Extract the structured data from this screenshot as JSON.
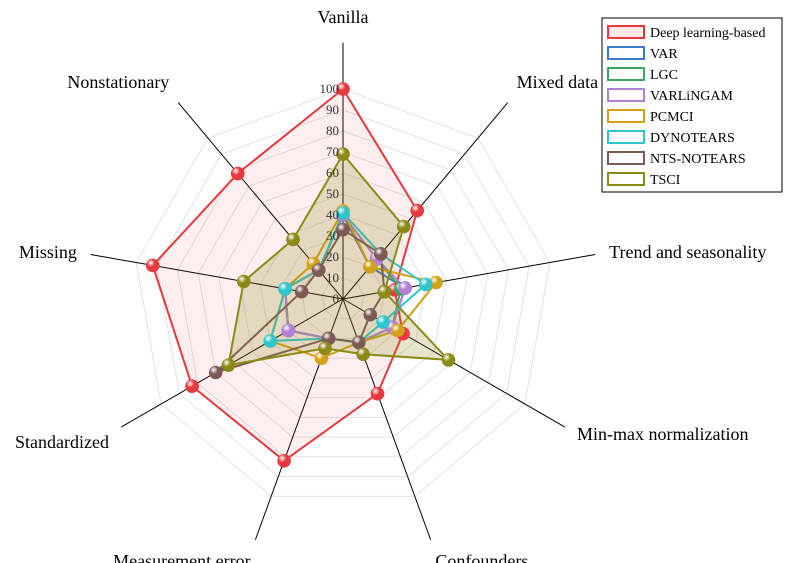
{
  "chart_data": {
    "type": "radar",
    "axes": [
      "Vanilla",
      "Mixed data",
      "Trend and seasonality",
      "Min-max normalization",
      "Confounders",
      "Measurement error",
      "Standardized",
      "Missing",
      "Nonstationary"
    ],
    "radial_ticks": [
      "0",
      "10",
      "20",
      "30",
      "40",
      "50",
      "60",
      "70",
      "80",
      "90",
      "100"
    ],
    "rlim": [
      0,
      100
    ],
    "grid": true,
    "legend_position": "top-right",
    "series": [
      {
        "name": "Deep learning-based",
        "color": "#e8393f",
        "fill": true,
        "values": [
          100,
          55,
          25,
          33,
          48,
          82,
          83,
          92,
          78
        ]
      },
      {
        "name": "VAR",
        "color": "#3d78c9",
        "fill": false,
        "values": [
          40,
          20,
          30,
          27,
          22,
          20,
          30,
          28,
          18
        ]
      },
      {
        "name": "LGC",
        "color": "#3ba660",
        "fill": false,
        "values": [
          40,
          25,
          28,
          27,
          22,
          20,
          30,
          28,
          18
        ]
      },
      {
        "name": "VARLiNGAM",
        "color": "#b27fd6",
        "fill": false,
        "values": [
          40,
          25,
          30,
          27,
          22,
          20,
          30,
          28,
          18
        ]
      },
      {
        "name": "PCMCI",
        "color": "#d4a017",
        "fill": false,
        "values": [
          42,
          20,
          45,
          30,
          22,
          30,
          40,
          28,
          22
        ]
      },
      {
        "name": "DYNOTEARS",
        "color": "#2ec6cc",
        "fill": false,
        "values": [
          41,
          28,
          40,
          22,
          22,
          20,
          40,
          28,
          18
        ]
      },
      {
        "name": "NTS-NOTEARS",
        "color": "#7e5a57",
        "fill": false,
        "values": [
          33,
          28,
          20,
          15,
          22,
          20,
          70,
          20,
          18
        ]
      },
      {
        "name": "TSCI",
        "color": "#8c8a16",
        "fill": true,
        "values": [
          69,
          45,
          20,
          58,
          28,
          25,
          63,
          48,
          37
        ]
      }
    ]
  }
}
